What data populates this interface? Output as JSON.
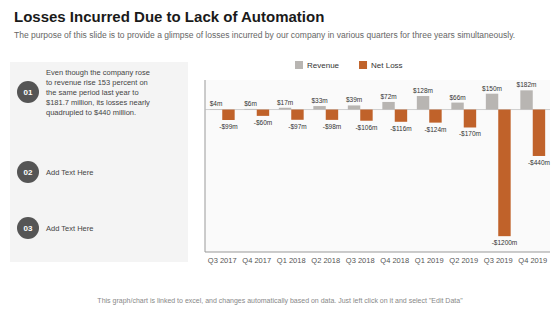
{
  "chart_data": {
    "type": "bar",
    "title": "Losses Incurred Due to Lack of Automation",
    "subtitle": "The purpose of this slide is to provide a glimpse of losses incurred by our company in various quarters for three years simultaneously.",
    "categories": [
      "Q3 2017",
      "Q4 2017",
      "Q1 2018",
      "Q2 2018",
      "Q3 2018",
      "Q4 2018",
      "Q1 2019",
      "Q2 2019",
      "Q3 2019",
      "Q4 2019"
    ],
    "series": [
      {
        "name": "Revenue",
        "color": "#b8b5b2",
        "values": [
          4,
          6,
          17,
          33,
          39,
          72,
          128,
          66,
          150,
          182
        ],
        "value_labels": [
          "$4m",
          "$6m",
          "$17m",
          "$33m",
          "$39m",
          "$72m",
          "$128m",
          "$66m",
          "$150m",
          "$182m"
        ]
      },
      {
        "name": "Net Loss",
        "color": "#c0622a",
        "values": [
          -99,
          -60,
          -97,
          -98,
          -106,
          -116,
          -124,
          -170,
          -1200,
          -440
        ],
        "value_labels": [
          "-$99m",
          "-$60m",
          "-$97m",
          "-$98m",
          "-$106m",
          "-$116m",
          "-$124m",
          "-$170m",
          "-$1200m",
          "-$440m"
        ]
      }
    ],
    "ylim": [
      -1350,
      280
    ],
    "tick_labels": "x",
    "data_labels": true,
    "legend": "top",
    "grid": false,
    "annotations": [
      {
        "label": "01",
        "text": "Even though the company rose\nto revenue rise 153 percent on\nthe same period last year to\n$181.7 million, its losses nearly\nquadrupled to $440 million."
      },
      {
        "label": "02",
        "text": "Add Text Here"
      },
      {
        "label": "03",
        "text": "Add Text Here"
      },
      {
        "text": "This graph/chart is linked to excel, and changes automatically based on data. Just left click on it and select \"Edit Data\""
      }
    ]
  }
}
